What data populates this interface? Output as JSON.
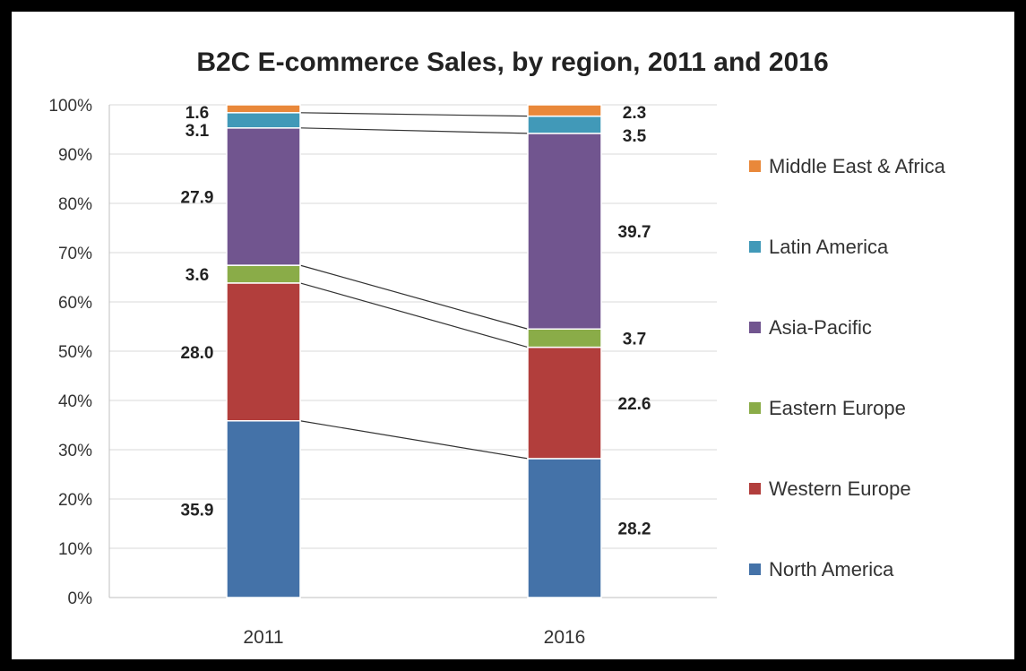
{
  "chart_data": {
    "type": "bar",
    "stacked": true,
    "percent_stacked": true,
    "title": "B2C E-commerce Sales, by region, 2011 and 2016",
    "categories": [
      "2011",
      "2016"
    ],
    "series": [
      {
        "name": "North America",
        "color": "#4472A8",
        "values": [
          35.9,
          28.2
        ],
        "labels": [
          "35.9",
          "28.2"
        ]
      },
      {
        "name": "Western Europe",
        "color": "#B23E3C",
        "values": [
          28.0,
          22.6
        ],
        "labels": [
          "28.0",
          "22.6"
        ]
      },
      {
        "name": "Eastern Europe",
        "color": "#8AAC48",
        "values": [
          3.6,
          3.7
        ],
        "labels": [
          "3.6",
          "3.7"
        ]
      },
      {
        "name": "Asia-Pacific",
        "color": "#71558F",
        "values": [
          27.9,
          39.7
        ],
        "labels": [
          "27.9",
          "39.7"
        ]
      },
      {
        "name": "Latin America",
        "color": "#4199B8",
        "values": [
          3.1,
          3.5
        ],
        "labels": [
          "3.1",
          "3.5"
        ]
      },
      {
        "name": "Middle East & Africa",
        "color": "#E9883A",
        "values": [
          1.6,
          2.3
        ],
        "labels": [
          "1.6",
          "2.3"
        ]
      }
    ],
    "yticks": [
      "0%",
      "10%",
      "20%",
      "30%",
      "40%",
      "50%",
      "60%",
      "70%",
      "80%",
      "90%",
      "100%"
    ],
    "ylim": [
      0,
      100
    ],
    "grid": true,
    "series_lines": true,
    "legend_position": "right"
  }
}
